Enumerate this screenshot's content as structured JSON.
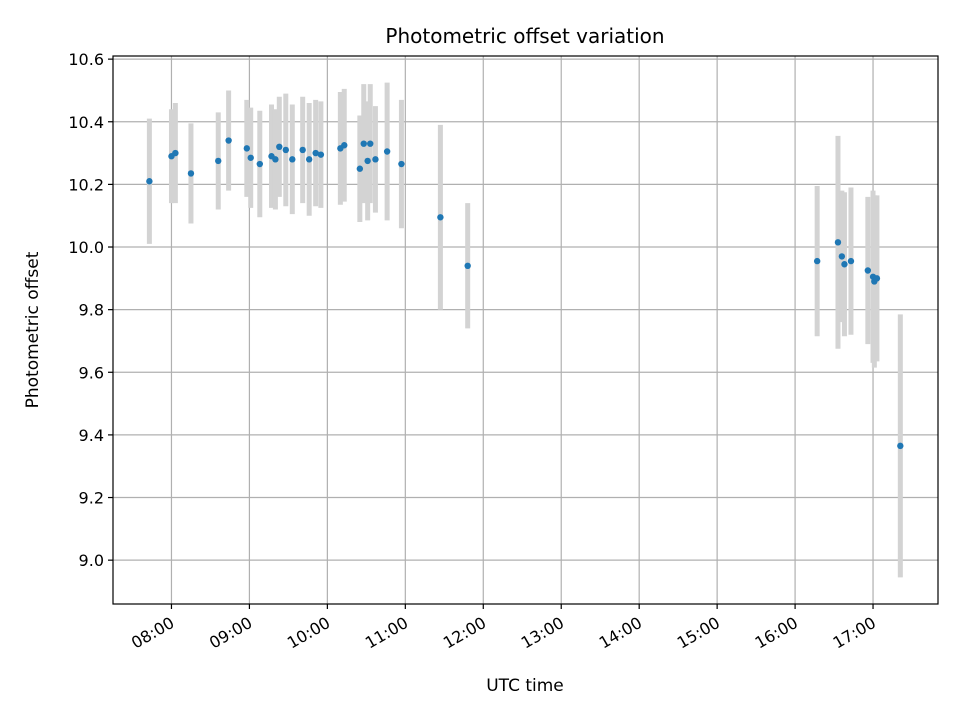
{
  "chart_data": {
    "type": "scatter",
    "title": "Photometric offset variation",
    "xlabel": "UTC time",
    "ylabel": "Photometric offset",
    "x_tick_labels": [
      "08:00",
      "09:00",
      "10:00",
      "11:00",
      "12:00",
      "13:00",
      "14:00",
      "15:00",
      "16:00",
      "17:00"
    ],
    "xlim": [
      "07:15",
      "17:50"
    ],
    "ylim": [
      8.86,
      10.61
    ],
    "y_ticks": [
      "9.0",
      "9.2",
      "9.4",
      "9.6",
      "9.8",
      "10.0",
      "10.2",
      "10.4",
      "10.6"
    ],
    "grid": true,
    "colors": {
      "points": "#1f77b4",
      "errorbars": "#d3d3d3",
      "grid": "#b0b0b0"
    },
    "points": [
      {
        "x": "07:43",
        "y": 10.21,
        "err": 0.2
      },
      {
        "x": "08:00",
        "y": 10.29,
        "err": 0.15
      },
      {
        "x": "08:03",
        "y": 10.3,
        "err": 0.16
      },
      {
        "x": "08:15",
        "y": 10.235,
        "err": 0.16
      },
      {
        "x": "08:36",
        "y": 10.275,
        "err": 0.155
      },
      {
        "x": "08:44",
        "y": 10.34,
        "err": 0.16
      },
      {
        "x": "08:58",
        "y": 10.315,
        "err": 0.155
      },
      {
        "x": "09:01",
        "y": 10.285,
        "err": 0.16
      },
      {
        "x": "09:08",
        "y": 10.265,
        "err": 0.17
      },
      {
        "x": "09:17",
        "y": 10.29,
        "err": 0.165
      },
      {
        "x": "09:20",
        "y": 10.28,
        "err": 0.16
      },
      {
        "x": "09:23",
        "y": 10.32,
        "err": 0.16
      },
      {
        "x": "09:28",
        "y": 10.31,
        "err": 0.18
      },
      {
        "x": "09:33",
        "y": 10.28,
        "err": 0.175
      },
      {
        "x": "09:41",
        "y": 10.31,
        "err": 0.17
      },
      {
        "x": "09:46",
        "y": 10.28,
        "err": 0.18
      },
      {
        "x": "09:51",
        "y": 10.3,
        "err": 0.17
      },
      {
        "x": "09:55",
        "y": 10.295,
        "err": 0.17
      },
      {
        "x": "10:10",
        "y": 10.315,
        "err": 0.18
      },
      {
        "x": "10:13",
        "y": 10.325,
        "err": 0.18
      },
      {
        "x": "10:25",
        "y": 10.25,
        "err": 0.17
      },
      {
        "x": "10:28",
        "y": 10.33,
        "err": 0.19
      },
      {
        "x": "10:31",
        "y": 10.275,
        "err": 0.19
      },
      {
        "x": "10:33",
        "y": 10.33,
        "err": 0.19
      },
      {
        "x": "10:37",
        "y": 10.28,
        "err": 0.17
      },
      {
        "x": "10:46",
        "y": 10.305,
        "err": 0.22
      },
      {
        "x": "10:57",
        "y": 10.265,
        "err": 0.205
      },
      {
        "x": "11:27",
        "y": 10.095,
        "err": 0.295
      },
      {
        "x": "11:48",
        "y": 9.94,
        "err": 0.2
      },
      {
        "x": "16:17",
        "y": 9.955,
        "err": 0.24
      },
      {
        "x": "16:33",
        "y": 10.015,
        "err": 0.34
      },
      {
        "x": "16:36",
        "y": 9.97,
        "err": 0.21
      },
      {
        "x": "16:38",
        "y": 9.945,
        "err": 0.23
      },
      {
        "x": "16:43",
        "y": 9.955,
        "err": 0.235
      },
      {
        "x": "16:56",
        "y": 9.925,
        "err": 0.235
      },
      {
        "x": "17:00",
        "y": 9.905,
        "err": 0.275
      },
      {
        "x": "17:01",
        "y": 9.89,
        "err": 0.275
      },
      {
        "x": "17:03",
        "y": 9.9,
        "err": 0.265
      },
      {
        "x": "17:21",
        "y": 9.365,
        "err": 0.42
      }
    ]
  }
}
